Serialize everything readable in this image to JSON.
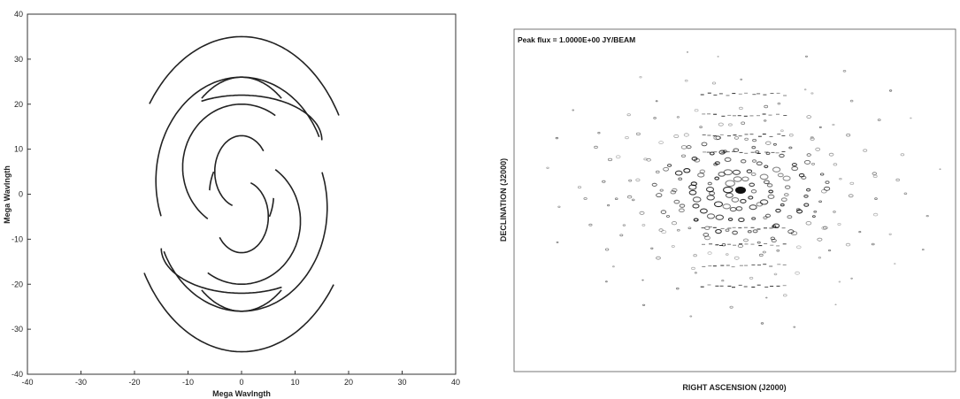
{
  "chart_data": [
    {
      "type": "scatter",
      "title": "",
      "xlabel": "Mega Wavlngth",
      "ylabel": "Mega Wavlngth",
      "xlim": [
        -40,
        40
      ],
      "ylim": [
        -40,
        40
      ],
      "x_ticks": [
        -40,
        -30,
        -20,
        -10,
        0,
        10,
        20,
        30,
        40
      ],
      "y_ticks": [
        -40,
        -30,
        -20,
        -10,
        0,
        10,
        20,
        30,
        40
      ],
      "grid": false,
      "color": "#222222",
      "note": "u-v coverage tracks (elliptical arcs, point-symmetric about origin)",
      "arcs": [
        {
          "cx": 0,
          "cy": 0,
          "rx": 21,
          "ry": 35,
          "t0": 30,
          "t1": 145
        },
        {
          "cx": 0,
          "cy": 0,
          "rx": 21,
          "ry": 35,
          "t0": 210,
          "t1": 325
        },
        {
          "cx": 0,
          "cy": 3,
          "rx": 16,
          "ry": 23,
          "t0": 25,
          "t1": 200
        },
        {
          "cx": 0,
          "cy": -3,
          "rx": 16,
          "ry": 23,
          "t0": 205,
          "t1": 380
        },
        {
          "cx": 0,
          "cy": 0,
          "rx": 13,
          "ry": 26,
          "t0": 55,
          "t1": 125
        },
        {
          "cx": 0,
          "cy": 0,
          "rx": 13,
          "ry": 26,
          "t0": 235,
          "t1": 305
        },
        {
          "cx": 0,
          "cy": 6,
          "rx": 11,
          "ry": 14,
          "t0": 55,
          "t1": 235
        },
        {
          "cx": 0,
          "cy": -6,
          "rx": 11,
          "ry": 14,
          "t0": 235,
          "t1": 415
        },
        {
          "cx": 0,
          "cy": 5,
          "rx": 5,
          "ry": 8,
          "t0": 35,
          "t1": 250
        },
        {
          "cx": 0,
          "cy": -5,
          "rx": 5,
          "ry": 8,
          "t0": 215,
          "t1": 430
        },
        {
          "cx": 0,
          "cy": 12,
          "rx": 15,
          "ry": 10,
          "t0": 0,
          "t1": 120
        },
        {
          "cx": 0,
          "cy": -12,
          "rx": 15,
          "ry": 10,
          "t0": 180,
          "t1": 300
        },
        {
          "cx": 0,
          "cy": 0,
          "rx": 6,
          "ry": 10,
          "t0": 150,
          "t1": 175
        },
        {
          "cx": 0,
          "cy": 0,
          "rx": 6,
          "ry": 10,
          "t0": 330,
          "t1": 355
        }
      ]
    },
    {
      "type": "scatter",
      "title": "",
      "annotation": "Peak flux = 1.0000E+00 JY/BEAM",
      "xlabel": "RIGHT ASCENSION (J2000)",
      "ylabel": "DECLINATION (J2000)",
      "grid": false,
      "note": "dirty beam contour map: concentric sidelobe rings around central peak",
      "center_peak": 1.0,
      "contour_rings": [
        {
          "rx": 0.03,
          "ry": 0.03,
          "dots": 10
        },
        {
          "rx": 0.07,
          "ry": 0.05,
          "dots": 22
        },
        {
          "rx": 0.11,
          "ry": 0.08,
          "dots": 30
        },
        {
          "rx": 0.15,
          "ry": 0.11,
          "dots": 38
        },
        {
          "rx": 0.19,
          "ry": 0.14,
          "dots": 44
        },
        {
          "rx": 0.24,
          "ry": 0.18,
          "dots": 42
        },
        {
          "rx": 0.3,
          "ry": 0.23,
          "dots": 36
        },
        {
          "rx": 0.37,
          "ry": 0.3,
          "dots": 28
        },
        {
          "rx": 0.44,
          "ry": 0.37,
          "dots": 22
        }
      ]
    }
  ]
}
